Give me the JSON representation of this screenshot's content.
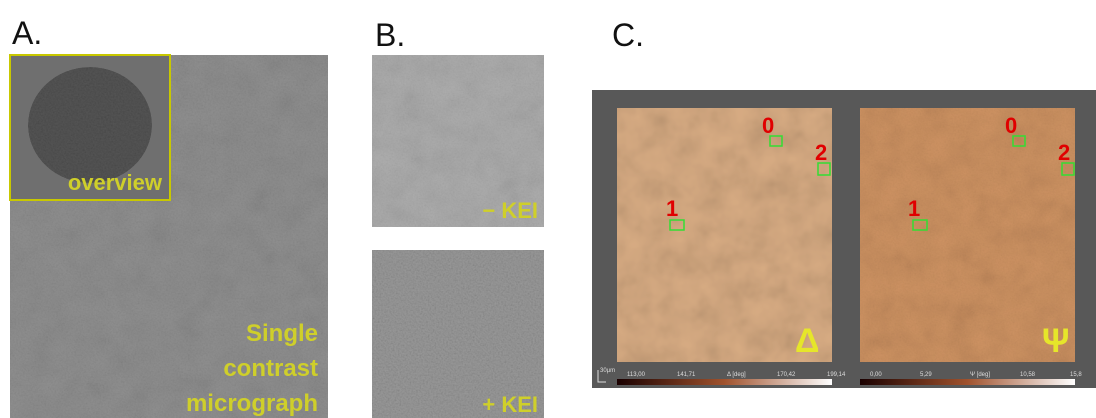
{
  "panel_a": {
    "label": "A.",
    "overview_label": "overview",
    "caption_lines": [
      "Single",
      "contrast",
      "micrograph"
    ]
  },
  "panel_b": {
    "label": "B.",
    "top_label": "− KEI",
    "bottom_label": "+ KEI"
  },
  "panel_c": {
    "label": "C.",
    "left_image": {
      "rois": [
        "0",
        "1",
        "2"
      ],
      "symbol": "Δ",
      "colorbar_labels": [
        "113,00",
        "141,71",
        "Δ [deg]",
        "170,42",
        "199,14"
      ]
    },
    "right_image": {
      "rois": [
        "0",
        "1",
        "2"
      ],
      "symbol": "Ψ",
      "colorbar_labels": [
        "0,00",
        "5,29",
        "Ψ [deg]",
        "10,58",
        "15,8"
      ]
    },
    "scale_bar": "30µm"
  }
}
